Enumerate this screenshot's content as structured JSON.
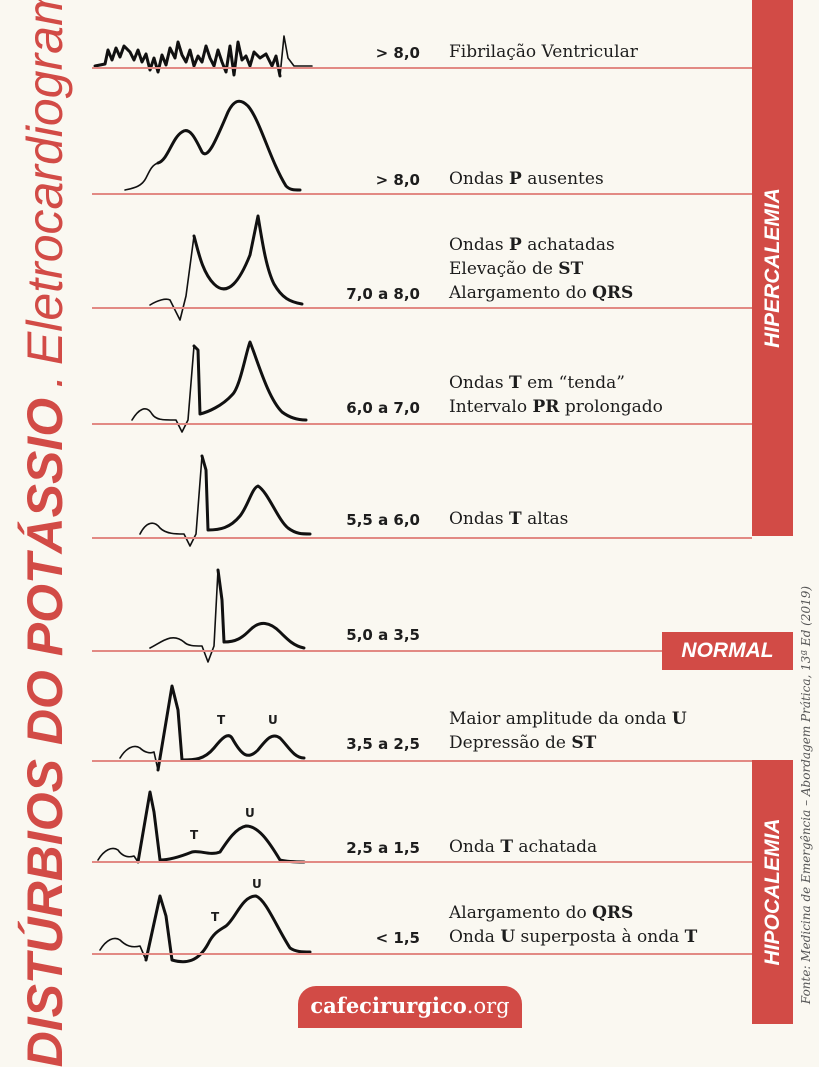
{
  "title": {
    "main": "DISTÚRBIOS DO POTÁSSIO",
    "sep": ".",
    "sub": "Eletrocardiograma"
  },
  "bands": {
    "hyper": "HIPERCALEMIA",
    "normal": "NORMAL",
    "hypo": "HIPOCALEMIA"
  },
  "source": "Fonte: Medicina de Emergência – Abordagem Prática, 13ª Ed (2019)",
  "site": {
    "name": "cafecirurgico",
    "tld": ".org"
  },
  "wave_labels": {
    "t": "T",
    "u": "U"
  },
  "rows": [
    {
      "k": "> 8,0",
      "lines": [
        [
          "Fibrilação Ventricular"
        ]
      ]
    },
    {
      "k": "> 8,0",
      "lines": [
        [
          "Ondas ",
          {
            "b": "P"
          },
          " ausentes"
        ]
      ]
    },
    {
      "k": "7,0 a 8,0",
      "lines": [
        [
          "Ondas ",
          {
            "b": "P"
          },
          " achatadas"
        ],
        [
          "Elevação de ",
          {
            "b": "ST"
          }
        ],
        [
          "Alargamento do ",
          {
            "b": "QRS"
          }
        ]
      ]
    },
    {
      "k": "6,0 a 7,0",
      "lines": [
        [
          "Ondas ",
          {
            "b": "T"
          },
          " em “tenda”"
        ],
        [
          "Intervalo ",
          {
            "b": "PR"
          },
          " prolongado"
        ]
      ]
    },
    {
      "k": "5,5 a 6,0",
      "lines": [
        [
          "Ondas ",
          {
            "b": "T"
          },
          " altas"
        ]
      ]
    },
    {
      "k": "5,0 a 3,5",
      "lines": []
    },
    {
      "k": "3,5 a 2,5",
      "lines": [
        [
          "Maior amplitude da onda ",
          {
            "b": "U"
          }
        ],
        [
          "Depressão de ",
          {
            "b": "ST"
          }
        ]
      ]
    },
    {
      "k": "2,5 a 1,5",
      "lines": [
        [
          "Onda ",
          {
            "b": "T"
          },
          " achatada"
        ]
      ]
    },
    {
      "k": "< 1,5",
      "lines": [
        [
          "Alargamento do ",
          {
            "b": "QRS"
          }
        ],
        [
          "Onda ",
          {
            "b": "U"
          },
          " superposta à onda ",
          {
            "b": "T"
          }
        ]
      ]
    }
  ]
}
